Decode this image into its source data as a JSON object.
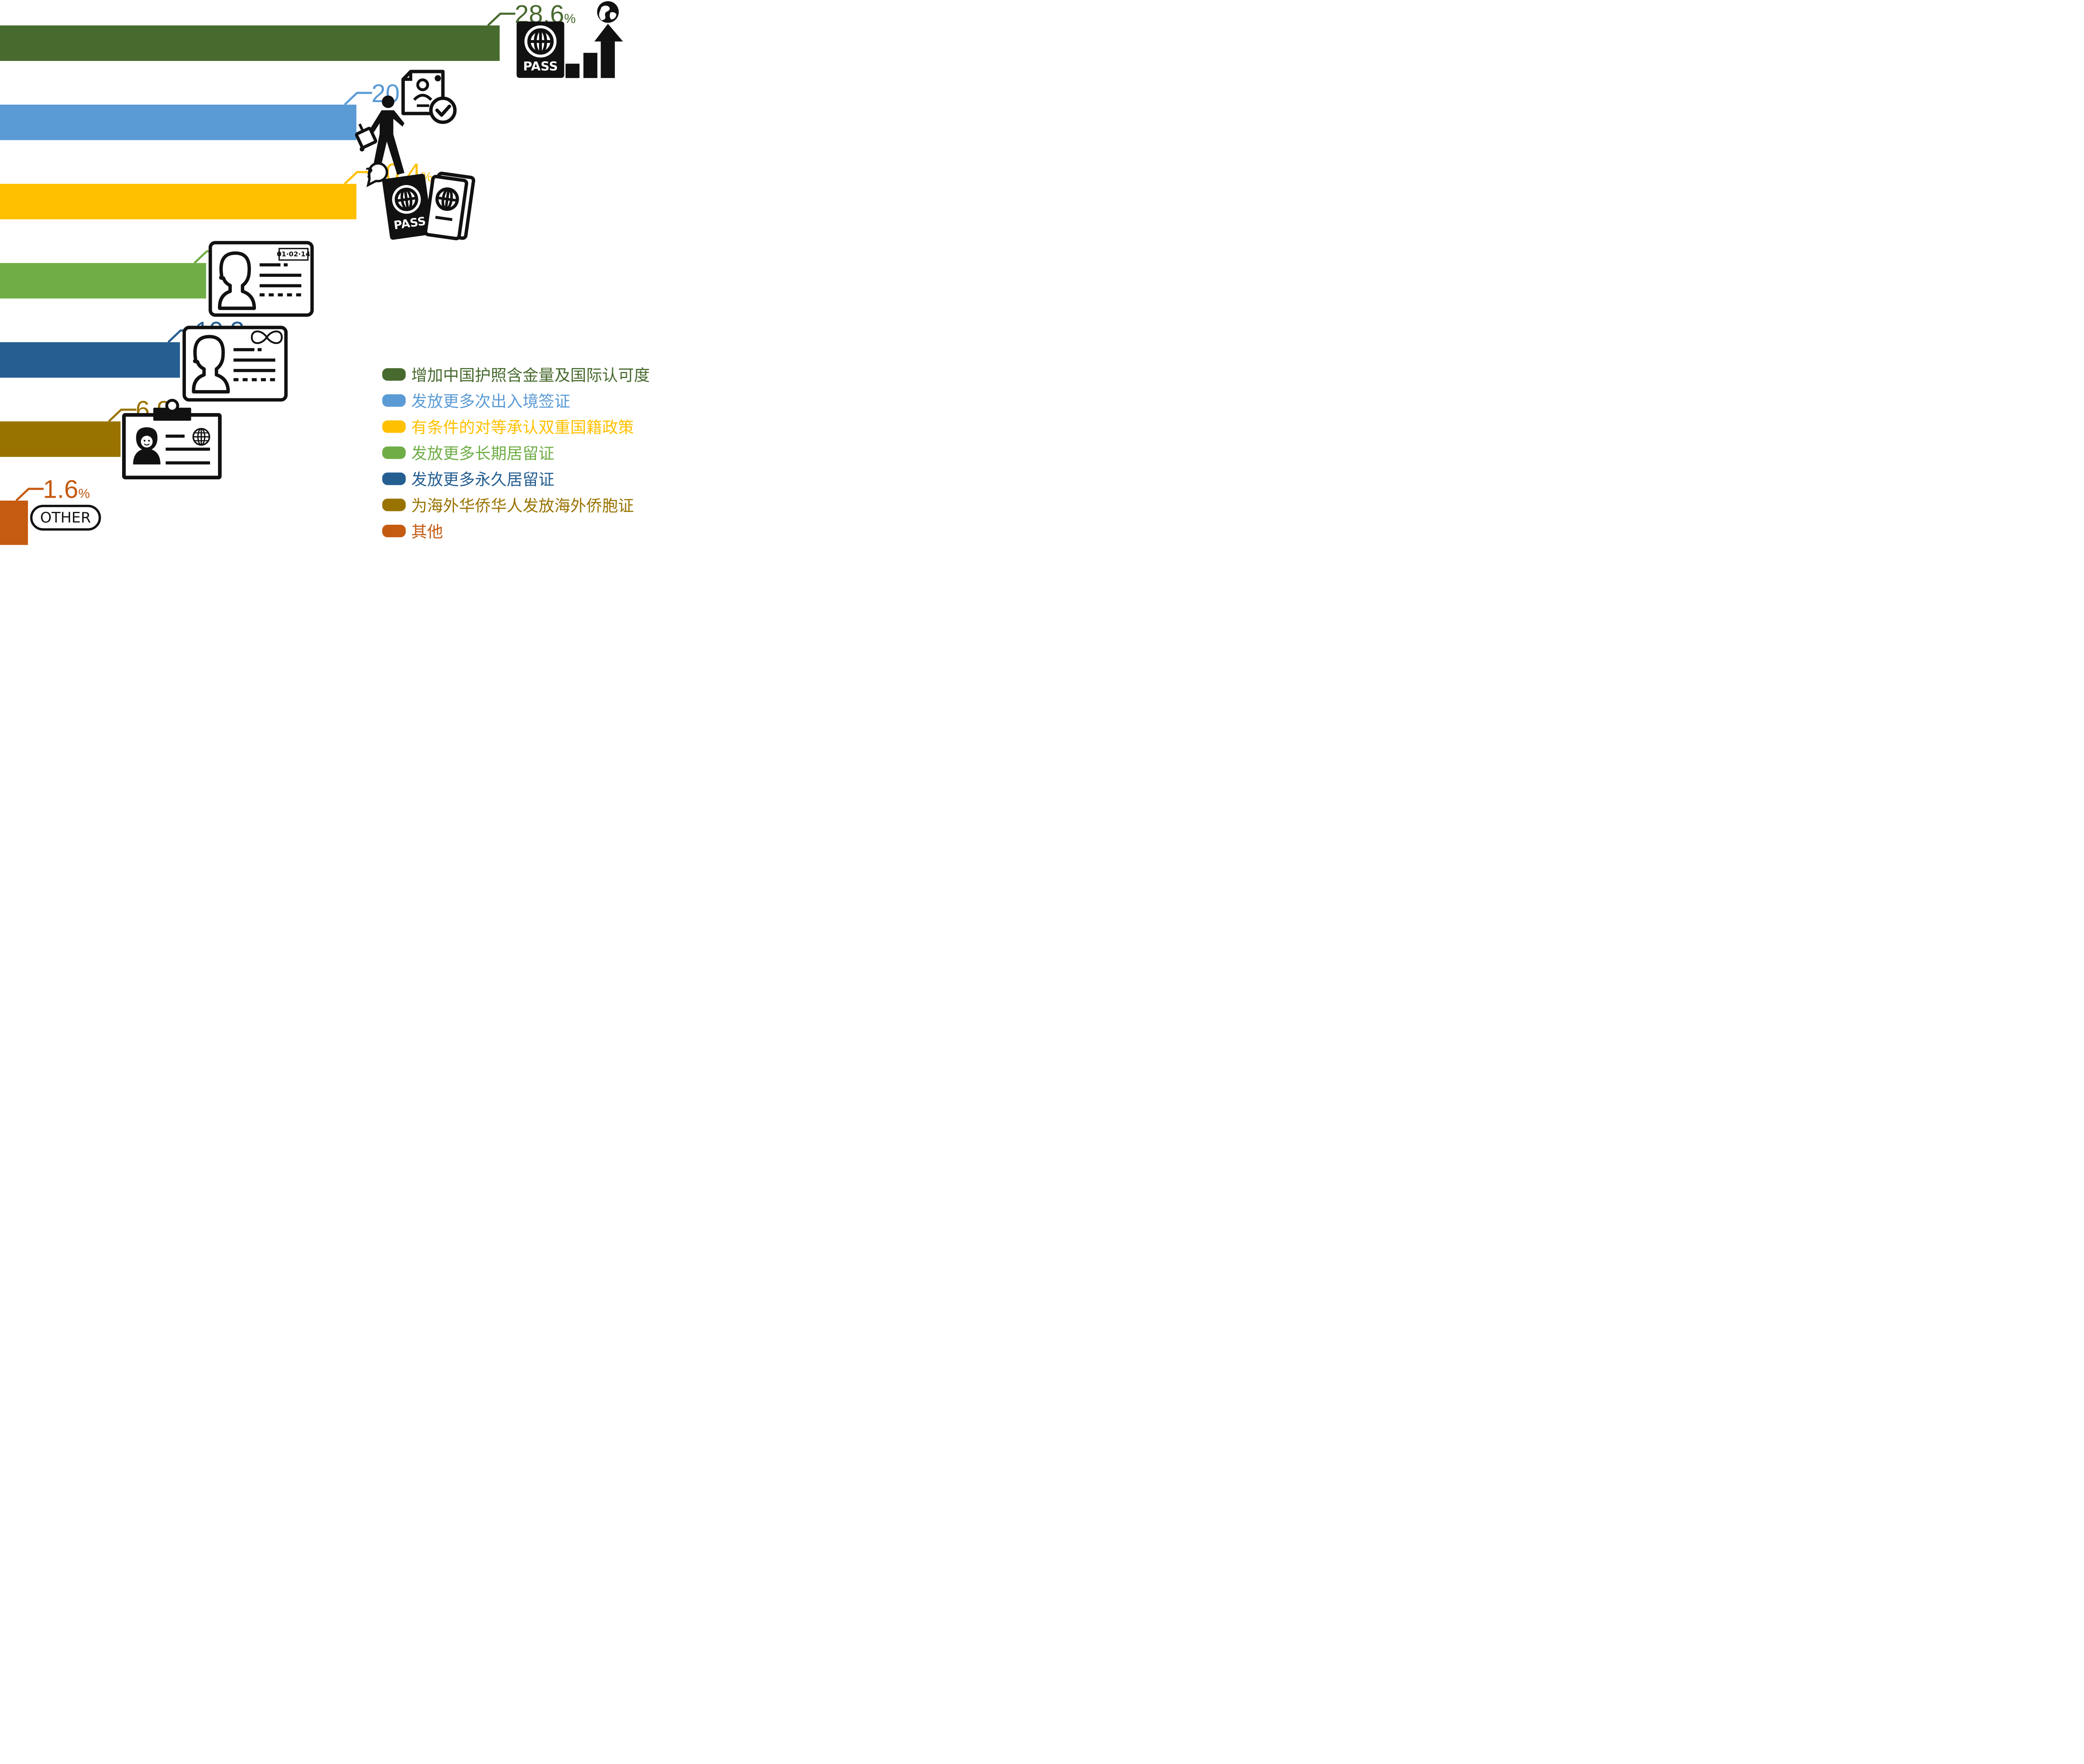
{
  "chart_data": {
    "type": "bar",
    "orientation": "horizontal",
    "categories": [
      "增加中国护照含金量及国际认可度",
      "发放更多次出入境签证",
      "有条件的对等承认双重国籍政策",
      "发放更多长期居留证",
      "发放更多永久居留证",
      "为海外华侨华人发放海外侨胞证",
      "其他"
    ],
    "values": [
      28.6,
      20.4,
      20.4,
      11.8,
      10.3,
      6.9,
      1.6
    ],
    "value_labels": [
      "28.6",
      "20.4",
      "20.4",
      "11.8",
      "10.3",
      "6.9",
      "1.6"
    ],
    "unit": "%",
    "colors": [
      "#476a2e",
      "#5b9bd5",
      "#ffc000",
      "#70ad47",
      "#255e91",
      "#997300",
      "#c55a11"
    ],
    "xlim": [
      0,
      28.6
    ],
    "grid": false,
    "legend_placement": "bottom-right"
  },
  "icons": {
    "passport_rising": "passport-rising-chart-icon",
    "traveler_visa": "traveler-visa-icon",
    "dual_passports": "dual-passport-question-icon",
    "resident_card": "dated-resident-card-icon",
    "permanent_card": "permanent-resident-card-icon",
    "overseas_badge": "overseas-badge-icon"
  },
  "pass_text": "PASS",
  "card_date": "01·02·14",
  "other_label": "OTHER"
}
